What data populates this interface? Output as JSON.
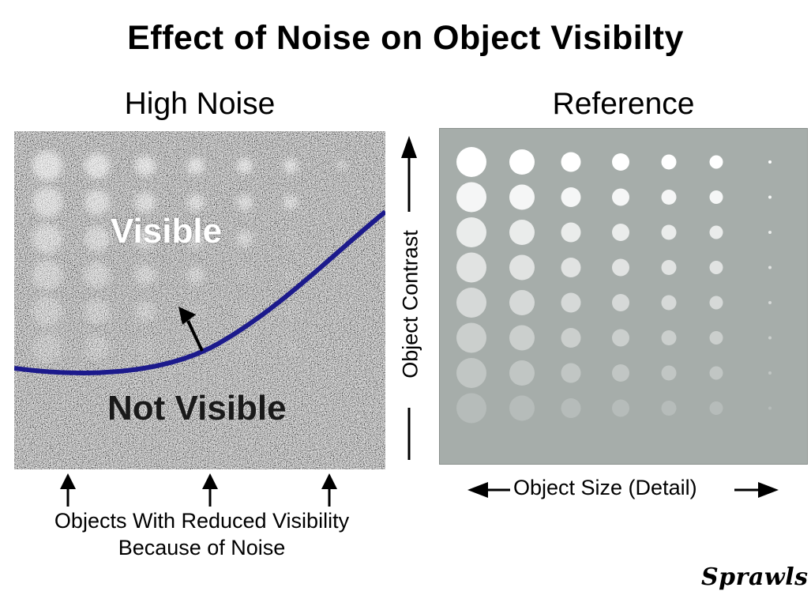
{
  "title": "Effect of Noise on Object Visibilty",
  "panels": {
    "noise": {
      "label": "High Noise",
      "visible_label": "Visible",
      "not_visible_label": "Not Visible"
    },
    "reference": {
      "label": "Reference"
    }
  },
  "axes": {
    "contrast_label": "Object Contrast",
    "size_label": "Object Size (Detail)"
  },
  "caption": {
    "line1": "Objects With Reduced Visibility",
    "line2": "Because of Noise"
  },
  "signature": "Sprawls",
  "colors": {
    "curve": "#1c1a8c",
    "reference_bg": "#a6adaa",
    "noise_bg": "#8f8f8f"
  },
  "grid": {
    "columns": 7,
    "rows": 8
  }
}
